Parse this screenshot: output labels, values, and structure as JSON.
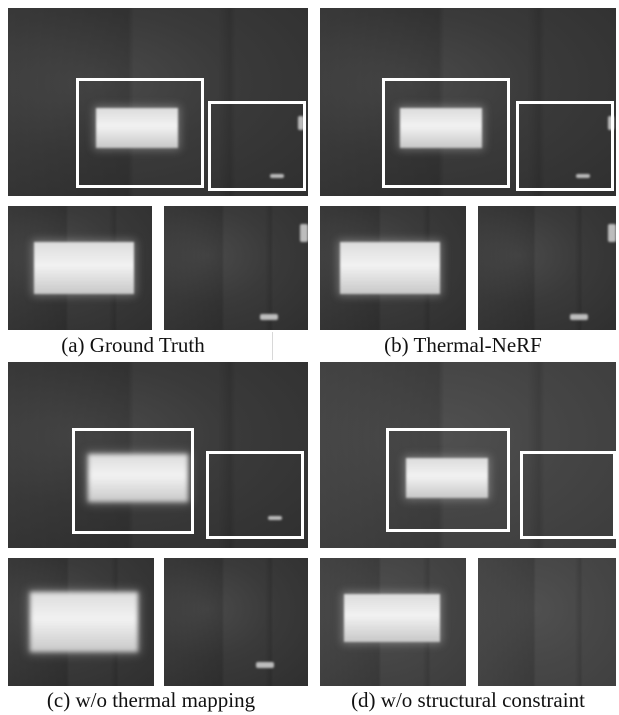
{
  "captions": {
    "a": "(a) Ground Truth",
    "b": "(b) Thermal-NeRF",
    "c": "(c) w/o thermal mapping",
    "d": "(d) w/o structural constraint"
  },
  "colors": {
    "background": "#ffffff",
    "highlight_box": "#ffffff",
    "thermal_dark": "#3a3a3a",
    "thermal_hot": "#f0f0f0"
  }
}
